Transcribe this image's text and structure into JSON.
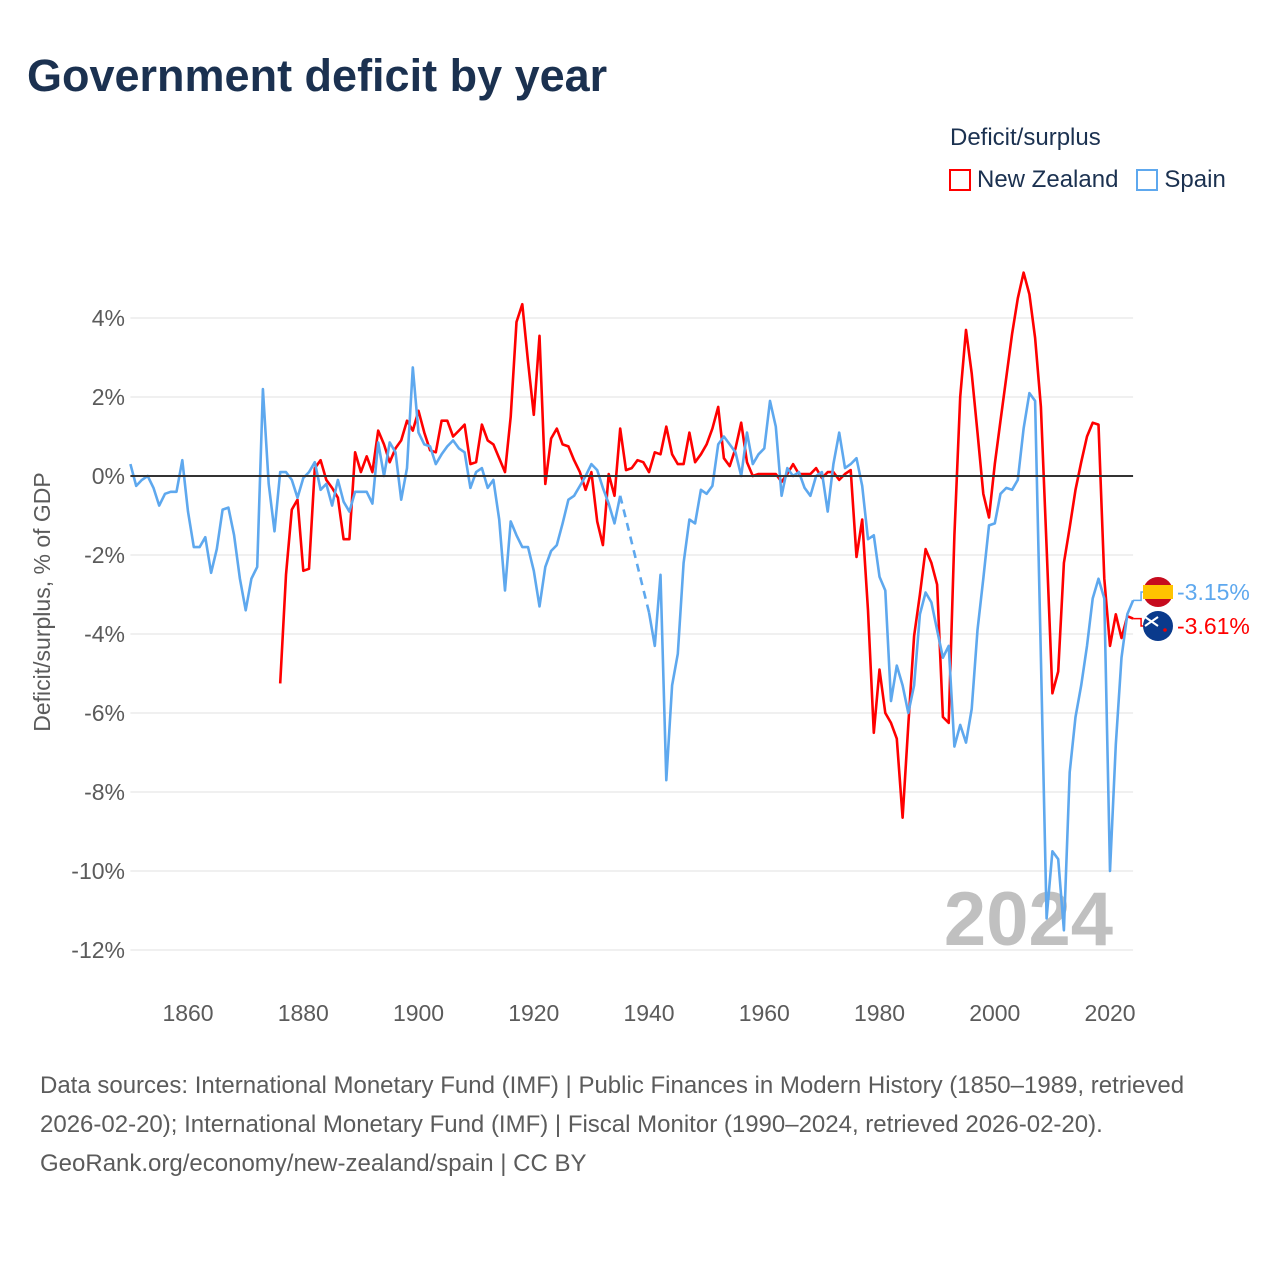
{
  "title": "Government deficit by year",
  "legend": {
    "title": "Deficit/surplus",
    "items": [
      {
        "label": "New Zealand",
        "color": "#ff0000"
      },
      {
        "label": "Spain",
        "color": "#5ea8ee"
      }
    ]
  },
  "watermark": "2024",
  "footer": {
    "sources": "Data sources: International Monetary Fund (IMF) | Public Finances in Modern History (1850–1989, retrieved 2026-02-20); International Monetary Fund (IMF) | Fiscal Monitor (1990–2024, retrieved 2026-02-20).",
    "credit": "GeoRank.org/economy/new-zealand/spain | CC BY"
  },
  "chart_data": {
    "type": "line",
    "title": "Government deficit by year",
    "xlabel": "",
    "ylabel": "Deficit/surplus, % of GDP",
    "xlim": [
      1850,
      2024
    ],
    "ylim": [
      -13,
      5.3
    ],
    "yticks": [
      4,
      2,
      0,
      -2,
      -4,
      -6,
      -8,
      -10,
      -12
    ],
    "ytick_labels": [
      "4%",
      "2%",
      "0%",
      "-2%",
      "-4%",
      "-6%",
      "-8%",
      "-10%",
      "-12%"
    ],
    "xticks": [
      1860,
      1880,
      1900,
      1920,
      1940,
      1960,
      1980,
      2000,
      2020
    ],
    "xtick_labels": [
      "1860",
      "1880",
      "1900",
      "1920",
      "1940",
      "1960",
      "1980",
      "2000",
      "2020"
    ],
    "grid": true,
    "legend_position": "top-right",
    "end_labels": [
      {
        "series": "Spain",
        "text": "-3.15%"
      },
      {
        "series": "New Zealand",
        "text": "-3.61%"
      }
    ],
    "series": [
      {
        "name": "New Zealand",
        "color": "#ff0000",
        "start_year": 1876,
        "values": [
          -5.25,
          -2.5,
          -0.85,
          -0.6,
          -2.4,
          -2.35,
          0.2,
          0.4,
          -0.1,
          -0.3,
          -0.55,
          -1.6,
          -1.6,
          0.6,
          0.1,
          0.5,
          0.1,
          1.15,
          0.8,
          0.35,
          0.7,
          0.9,
          1.4,
          1.15,
          1.65,
          1.1,
          0.65,
          0.6,
          1.4,
          1.4,
          1.0,
          1.15,
          1.3,
          0.3,
          0.35,
          1.3,
          0.9,
          0.8,
          0.45,
          0.1,
          1.5,
          3.9,
          4.35,
          2.9,
          1.55,
          3.55,
          -0.2,
          0.95,
          1.2,
          0.8,
          0.75,
          0.4,
          0.1,
          -0.35,
          0.1,
          -1.15,
          -1.75,
          0.05,
          -0.5,
          1.2,
          0.15,
          0.2,
          0.4,
          0.35,
          0.1,
          0.6,
          0.55,
          1.25,
          0.55,
          0.3,
          0.3,
          1.1,
          0.35,
          0.55,
          0.8,
          1.2,
          1.75,
          0.45,
          0.25,
          0.7,
          1.35,
          0.35,
          0.0,
          0.05,
          0.05,
          0.05,
          0.05,
          -0.15,
          0.05,
          0.3,
          0.05,
          0.05,
          0.05,
          0.2,
          -0.05,
          0.1,
          0.1,
          -0.1,
          0.05,
          0.15,
          -2.05,
          -1.1,
          -3.4,
          -6.5,
          -4.9,
          -6.0,
          -6.25,
          -6.65,
          -8.65,
          -6.3,
          -4.05,
          -3.0,
          -1.85,
          -2.2,
          -2.75,
          -6.1,
          -6.25,
          -1.5,
          2.0,
          3.7,
          2.6,
          1.1,
          -0.45,
          -1.05,
          0.3,
          1.4,
          2.5,
          3.6,
          4.5,
          5.15,
          4.6,
          3.5,
          1.75,
          -1.8,
          -5.5,
          -4.95,
          -2.2,
          -1.3,
          -0.35,
          0.35,
          1.0,
          1.35,
          1.3,
          -2.6,
          -4.3,
          -3.5,
          -4.1,
          -3.55,
          -3.61
        ]
      },
      {
        "name": "Spain",
        "color": "#5ea8ee",
        "start_year": 1850,
        "values": [
          0.3,
          -0.25,
          -0.1,
          0.0,
          -0.3,
          -0.75,
          -0.45,
          -0.4,
          -0.4,
          0.4,
          -0.9,
          -1.8,
          -1.8,
          -1.55,
          -2.45,
          -1.85,
          -0.85,
          -0.8,
          -1.5,
          -2.6,
          -3.4,
          -2.6,
          -2.3,
          2.2,
          -0.2,
          -1.4,
          0.1,
          0.1,
          -0.1,
          -0.55,
          -0.05,
          0.1,
          0.35,
          -0.35,
          -0.2,
          -0.75,
          -0.1,
          -0.65,
          -0.9,
          -0.4,
          -0.4,
          -0.4,
          -0.7,
          0.85,
          0.0,
          0.85,
          0.6,
          -0.6,
          0.2,
          2.75,
          1.1,
          0.8,
          0.75,
          0.3,
          0.55,
          0.75,
          0.9,
          0.7,
          0.6,
          -0.3,
          0.1,
          0.2,
          -0.3,
          -0.1,
          -1.1,
          -2.9,
          -1.15,
          -1.5,
          -1.8,
          -1.8,
          -2.4,
          -3.3,
          -2.3,
          -1.9,
          -1.75,
          -1.2,
          -0.6,
          -0.5,
          -0.25,
          0.0,
          0.3,
          0.15,
          -0.3,
          -0.7,
          -1.2,
          -0.5,
          null,
          null,
          null,
          null,
          -3.45,
          -4.3,
          -2.5,
          -7.7,
          -5.3,
          -4.5,
          -2.2,
          -1.1,
          -1.2,
          -0.35,
          -0.45,
          -0.25,
          0.8,
          1.0,
          0.8,
          0.6,
          0.0,
          1.1,
          0.3,
          0.55,
          0.7,
          1.9,
          1.25,
          -0.5,
          0.2,
          0.0,
          0.1,
          -0.3,
          -0.5,
          0.0,
          0.1,
          -0.9,
          0.3,
          1.1,
          0.2,
          0.3,
          0.45,
          -0.25,
          -1.6,
          -1.5,
          -2.55,
          -2.9,
          -5.7,
          -4.8,
          -5.3,
          -6.0,
          -5.3,
          -3.5,
          -2.95,
          -3.2,
          -3.9,
          -4.6,
          -4.3,
          -6.85,
          -6.3,
          -6.75,
          -5.9,
          -3.9,
          -2.6,
          -1.25,
          -1.2,
          -0.45,
          -0.3,
          -0.35,
          -0.1,
          1.2,
          2.1,
          1.9,
          -4.6,
          -11.2,
          -9.5,
          -9.7,
          -11.5,
          -7.5,
          -6.1,
          -5.3,
          -4.3,
          -3.1,
          -2.6,
          -3.1,
          -10.0,
          -6.8,
          -4.6,
          -3.5,
          -3.15
        ]
      }
    ]
  }
}
